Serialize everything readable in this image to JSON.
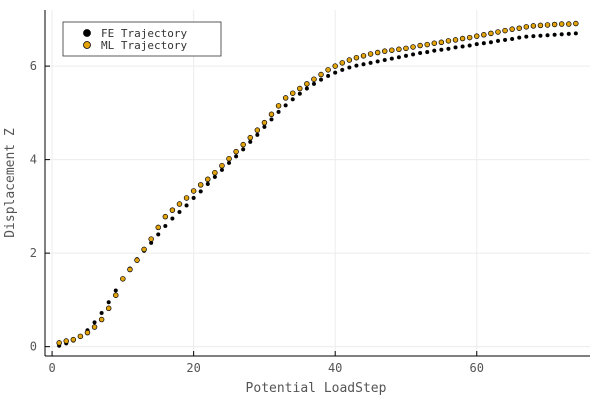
{
  "chart_data": {
    "type": "scatter",
    "title": "",
    "xlabel": "Potential LoadStep",
    "ylabel": "Displacement Z",
    "xlim": [
      -1,
      76
    ],
    "ylim": [
      -0.2,
      7.2
    ],
    "xticks": [
      0,
      20,
      40,
      60
    ],
    "yticks": [
      0,
      2,
      4,
      6
    ],
    "grid": true,
    "legend_position": "top-left",
    "series": [
      {
        "name": "FE Trajectory",
        "color": "#000000",
        "x": [
          1,
          2,
          3,
          4,
          5,
          6,
          7,
          8,
          9,
          10,
          11,
          12,
          13,
          14,
          15,
          16,
          17,
          18,
          19,
          20,
          21,
          22,
          23,
          24,
          25,
          26,
          27,
          28,
          29,
          30,
          31,
          32,
          33,
          34,
          35,
          36,
          37,
          38,
          39,
          40,
          41,
          42,
          43,
          44,
          45,
          46,
          47,
          48,
          49,
          50,
          51,
          52,
          53,
          54,
          55,
          56,
          57,
          58,
          59,
          60,
          61,
          62,
          63,
          64,
          65,
          66,
          67,
          68,
          69,
          70,
          71,
          72,
          73,
          74
        ],
        "y": [
          0.02,
          0.07,
          0.13,
          0.22,
          0.35,
          0.52,
          0.72,
          0.95,
          1.2,
          1.45,
          1.67,
          1.87,
          2.05,
          2.22,
          2.4,
          2.58,
          2.74,
          2.88,
          3.02,
          3.18,
          3.32,
          3.48,
          3.63,
          3.78,
          3.93,
          4.07,
          4.22,
          4.38,
          4.53,
          4.7,
          4.86,
          5.02,
          5.16,
          5.29,
          5.41,
          5.52,
          5.62,
          5.71,
          5.79,
          5.86,
          5.92,
          5.97,
          6.01,
          6.04,
          6.07,
          6.1,
          6.13,
          6.16,
          6.19,
          6.22,
          6.25,
          6.28,
          6.3,
          6.33,
          6.35,
          6.37,
          6.4,
          6.42,
          6.44,
          6.47,
          6.49,
          6.51,
          6.54,
          6.56,
          6.58,
          6.61,
          6.63,
          6.64,
          6.65,
          6.66,
          6.67,
          6.68,
          6.69,
          6.7
        ]
      },
      {
        "name": "ML Trajectory",
        "color": "#e3a30c",
        "x": [
          1,
          2,
          3,
          4,
          5,
          6,
          7,
          8,
          9,
          10,
          11,
          12,
          13,
          14,
          15,
          16,
          17,
          18,
          19,
          20,
          21,
          22,
          23,
          24,
          25,
          26,
          27,
          28,
          29,
          30,
          31,
          32,
          33,
          34,
          35,
          36,
          37,
          38,
          39,
          40,
          41,
          42,
          43,
          44,
          45,
          46,
          47,
          48,
          49,
          50,
          51,
          52,
          53,
          54,
          55,
          56,
          57,
          58,
          59,
          60,
          61,
          62,
          63,
          64,
          65,
          66,
          67,
          68,
          69,
          70,
          71,
          72,
          73,
          74
        ],
        "y": [
          0.08,
          0.12,
          0.15,
          0.22,
          0.3,
          0.42,
          0.58,
          0.82,
          1.1,
          1.45,
          1.65,
          1.85,
          2.08,
          2.3,
          2.55,
          2.78,
          2.92,
          3.05,
          3.18,
          3.33,
          3.46,
          3.58,
          3.72,
          3.87,
          4.02,
          4.17,
          4.32,
          4.47,
          4.63,
          4.79,
          4.97,
          5.15,
          5.32,
          5.42,
          5.52,
          5.62,
          5.72,
          5.82,
          5.92,
          6.0,
          6.07,
          6.13,
          6.18,
          6.22,
          6.26,
          6.29,
          6.32,
          6.34,
          6.36,
          6.38,
          6.41,
          6.44,
          6.46,
          6.49,
          6.51,
          6.54,
          6.56,
          6.59,
          6.61,
          6.64,
          6.67,
          6.7,
          6.73,
          6.76,
          6.79,
          6.81,
          6.84,
          6.86,
          6.87,
          6.88,
          6.89,
          6.9,
          6.9,
          6.91
        ]
      }
    ]
  }
}
